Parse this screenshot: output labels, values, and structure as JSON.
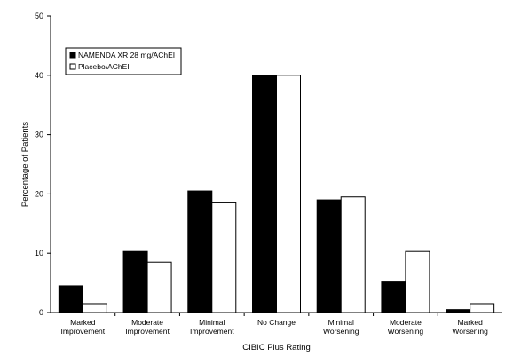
{
  "chart_data": {
    "type": "bar",
    "xlabel": "CIBIC Plus Rating",
    "ylabel": "Percentage of Patients",
    "ylim": [
      0,
      50
    ],
    "yticks": [
      "0",
      "10",
      "20",
      "30",
      "40",
      "50"
    ],
    "categories": [
      [
        "Marked",
        "Improvement"
      ],
      [
        "Moderate",
        "Improvement"
      ],
      [
        "Minimal",
        "Improvement"
      ],
      [
        "No Change"
      ],
      [
        "Minimal",
        "Worsening"
      ],
      [
        "Moderate",
        "Worsening"
      ],
      [
        "Marked",
        "Worsening"
      ]
    ],
    "series": [
      {
        "name": "NAMENDA XR 28 mg/AChEI",
        "fill": "#000000",
        "values": [
          4.5,
          10.3,
          20.5,
          40.0,
          19.0,
          5.3,
          0.5
        ]
      },
      {
        "name": "Placebo/AChEI",
        "fill": "#ffffff",
        "values": [
          1.5,
          8.5,
          18.5,
          40.0,
          19.5,
          10.3,
          1.5
        ]
      }
    ],
    "legend_position": "top-left",
    "grid": false
  }
}
